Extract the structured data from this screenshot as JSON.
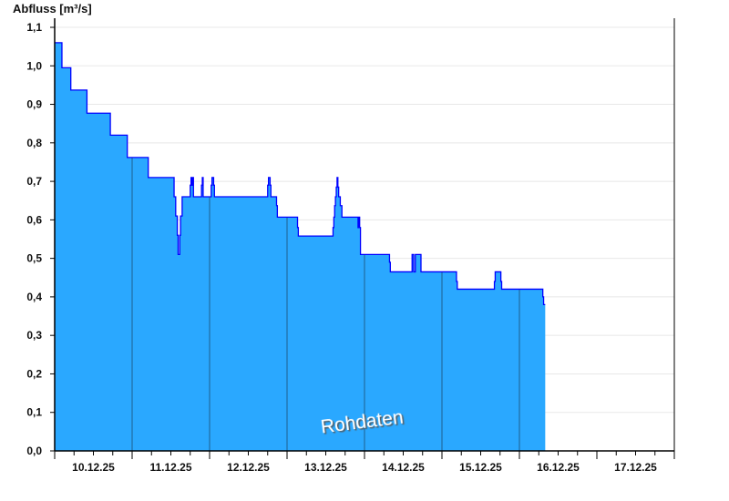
{
  "chart_data": {
    "type": "area",
    "title": "",
    "ylabel": "Abfluss [m³/s]",
    "xlabel": "",
    "ylim": [
      0,
      1.1
    ],
    "xlim": [
      "10.12.25 00:00",
      "18.12.25 00:00"
    ],
    "yticks": [
      "0,0",
      "0,1",
      "0,2",
      "0,3",
      "0,4",
      "0,5",
      "0,6",
      "0,7",
      "0,8",
      "0,9",
      "1,0",
      "1,1"
    ],
    "xtick_labels": [
      "10.12.25",
      "11.12.25",
      "12.12.25",
      "13.12.25",
      "14.12.25",
      "15.12.25",
      "16.12.25",
      "17.12.25"
    ],
    "grid": true,
    "step": true,
    "watermark": "Rohdaten",
    "colors": {
      "fill": "#2aa8ff",
      "line": "#0000ff",
      "grid": "#e8e8e8",
      "day_lines": "#1f5f8f"
    },
    "series": [
      {
        "points": [
          [
            "10.12.25 00:00",
            1.06
          ],
          [
            "10.12.25 02:15",
            0.995
          ],
          [
            "10.12.25 05:00",
            0.937
          ],
          [
            "10.12.25 10:00",
            0.877
          ],
          [
            "10.12.25 17:15",
            0.82
          ],
          [
            "10.12.25 22:30",
            0.762
          ],
          [
            "11.12.25 05:00",
            0.71
          ],
          [
            "11.12.25 13:00",
            0.66
          ],
          [
            "11.12.25 13:30",
            0.61
          ],
          [
            "11.12.25 14:00",
            0.56
          ],
          [
            "11.12.25 14:15",
            0.51
          ],
          [
            "11.12.25 14:45",
            0.56
          ],
          [
            "11.12.25 15:00",
            0.61
          ],
          [
            "11.12.25 15:30",
            0.66
          ],
          [
            "11.12.25 18:00",
            0.69
          ],
          [
            "11.12.25 18:15",
            0.71
          ],
          [
            "11.12.25 18:30",
            0.69
          ],
          [
            "11.12.25 18:45",
            0.71
          ],
          [
            "11.12.25 19:00",
            0.66
          ],
          [
            "11.12.25 21:30",
            0.69
          ],
          [
            "11.12.25 21:45",
            0.71
          ],
          [
            "11.12.25 22:00",
            0.66
          ],
          [
            "12.12.25 00:30",
            0.69
          ],
          [
            "12.12.25 00:45",
            0.71
          ],
          [
            "12.12.25 01:15",
            0.69
          ],
          [
            "12.12.25 01:30",
            0.66
          ],
          [
            "12.12.25 18:00",
            0.69
          ],
          [
            "12.12.25 18:15",
            0.71
          ],
          [
            "12.12.25 18:45",
            0.69
          ],
          [
            "12.12.25 19:00",
            0.66
          ],
          [
            "12.12.25 20:45",
            0.637
          ],
          [
            "12.12.25 21:00",
            0.607
          ],
          [
            "13.12.25 03:15",
            0.58
          ],
          [
            "13.12.25 03:30",
            0.558
          ],
          [
            "13.12.25 14:15",
            0.58
          ],
          [
            "13.12.25 14:30",
            0.607
          ],
          [
            "13.12.25 14:45",
            0.637
          ],
          [
            "13.12.25 15:00",
            0.66
          ],
          [
            "13.12.25 15:15",
            0.685
          ],
          [
            "13.12.25 15:30",
            0.71
          ],
          [
            "13.12.25 15:45",
            0.685
          ],
          [
            "13.12.25 16:00",
            0.66
          ],
          [
            "13.12.25 16:30",
            0.637
          ],
          [
            "13.12.25 17:00",
            0.607
          ],
          [
            "13.12.25 22:00",
            0.58
          ],
          [
            "13.12.25 22:15",
            0.607
          ],
          [
            "13.12.25 22:30",
            0.58
          ],
          [
            "13.12.25 22:45",
            0.51
          ],
          [
            "14.12.25 07:45",
            0.49
          ],
          [
            "14.12.25 08:00",
            0.465
          ],
          [
            "14.12.25 14:45",
            0.51
          ],
          [
            "14.12.25 15:15",
            0.465
          ],
          [
            "14.12.25 15:45",
            0.51
          ],
          [
            "14.12.25 17:30",
            0.465
          ],
          [
            "15.12.25 04:30",
            0.44
          ],
          [
            "15.12.25 04:45",
            0.42
          ],
          [
            "15.12.25 16:15",
            0.44
          ],
          [
            "15.12.25 16:30",
            0.465
          ],
          [
            "15.12.25 18:15",
            0.44
          ],
          [
            "15.12.25 18:30",
            0.42
          ],
          [
            "16.12.25 07:15",
            0.4
          ],
          [
            "16.12.25 07:30",
            0.38
          ],
          [
            "16.12.25 08:00",
            0.38
          ]
        ]
      }
    ]
  }
}
